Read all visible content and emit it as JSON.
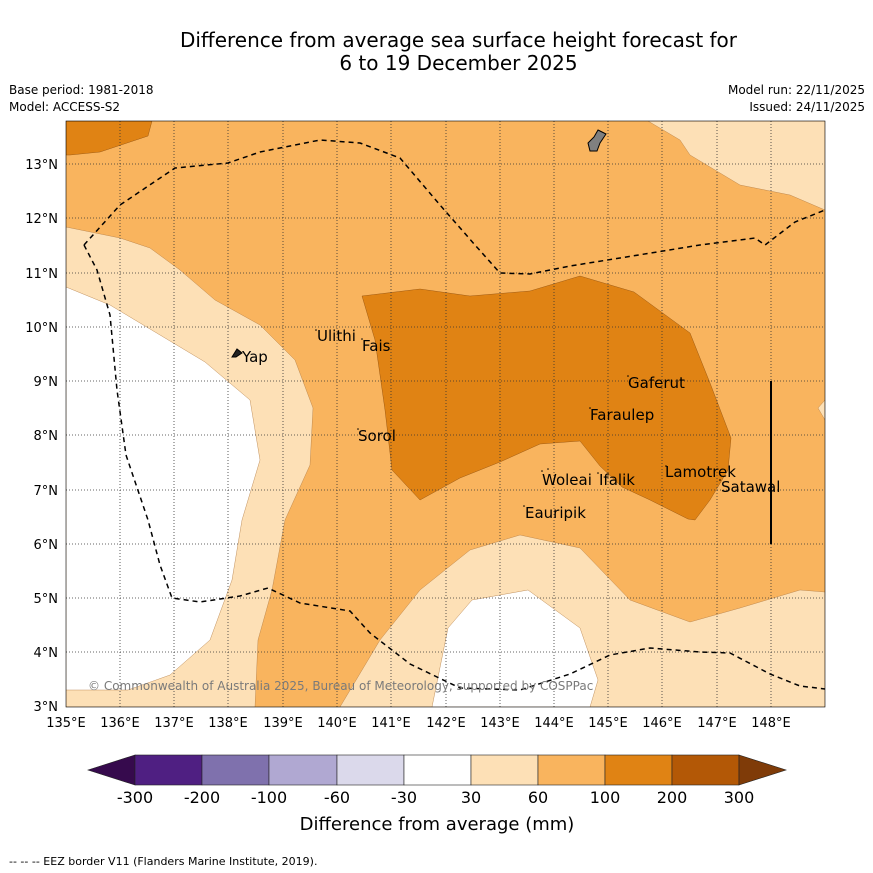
{
  "title": {
    "line1": "Difference from average sea surface height forecast for",
    "line2": "6 to 19 December 2025"
  },
  "meta": {
    "base_period": "Base period: 1981-2018",
    "model": "Model: ACCESS-S2",
    "model_run": "Model run: 22/11/2025",
    "issued": "Issued: 24/11/2025"
  },
  "axes": {
    "lat_labels": [
      "13°N",
      "12°N",
      "11°N",
      "10°N",
      "9°N",
      "8°N",
      "7°N",
      "6°N",
      "5°N",
      "4°N",
      "3°N"
    ],
    "lon_labels": [
      "135°E",
      "136°E",
      "137°E",
      "138°E",
      "139°E",
      "140°E",
      "141°E",
      "142°E",
      "143°E",
      "144°E",
      "145°E",
      "146°E",
      "147°E",
      "148°E"
    ]
  },
  "places": [
    {
      "name": "Yap"
    },
    {
      "name": "Ulithi"
    },
    {
      "name": "Fais"
    },
    {
      "name": "Sorol"
    },
    {
      "name": "Gaferut"
    },
    {
      "name": "Faraulep"
    },
    {
      "name": "Woleai"
    },
    {
      "name": "Ifalik"
    },
    {
      "name": "Eauripik"
    },
    {
      "name": "Lamotrek"
    },
    {
      "name": "Satawal"
    }
  ],
  "copyright": "© Commonwealth of Australia 2025, Bureau of Meteorology, supported by COSPPac",
  "legend": {
    "ticks": [
      "-300",
      "-200",
      "-100",
      "-60",
      "-30",
      "30",
      "60",
      "100",
      "200",
      "300"
    ],
    "label": "Difference from average (mm)",
    "colors": [
      "#360a4d",
      "#4f1f82",
      "#7f71ad",
      "#b0a8d2",
      "#dbd9eb",
      "#ffffff",
      "#fde0b6",
      "#f9b45e",
      "#e08314",
      "#b35806",
      "#7f3b08"
    ]
  },
  "footer": "--  --  -- EEZ border V11 (Flanders Marine Institute, 2019)."
}
